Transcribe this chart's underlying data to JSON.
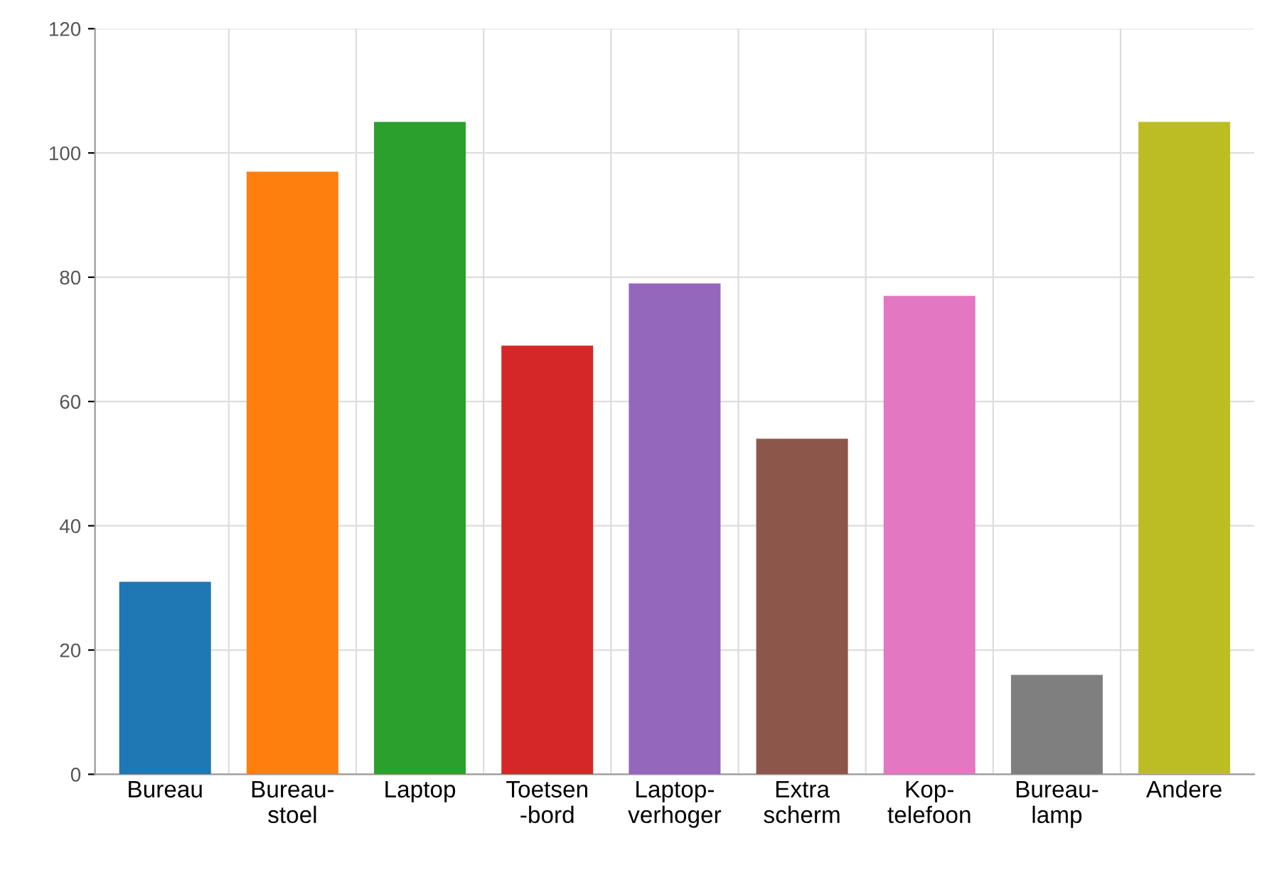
{
  "chart_data": {
    "type": "bar",
    "categories": [
      "Bureau",
      "Bureau-\nstoel",
      "Laptop",
      "Toetsen\n-bord",
      "Laptop-\nverhoger",
      "Extra\nscherm",
      "Kop-\ntelefoon",
      "Bureau-\nlamp",
      "Andere"
    ],
    "values": [
      31,
      97,
      105,
      69,
      79,
      54,
      77,
      16,
      105
    ],
    "colors": [
      "#1f77b4",
      "#ff7f0e",
      "#2ca02c",
      "#d62728",
      "#9467bd",
      "#8c564b",
      "#e377c2",
      "#7f7f7f",
      "#bcbd22"
    ],
    "ylim": [
      0,
      120
    ],
    "yticks": [
      0,
      20,
      40,
      60,
      80,
      100,
      120
    ],
    "grid": true
  }
}
